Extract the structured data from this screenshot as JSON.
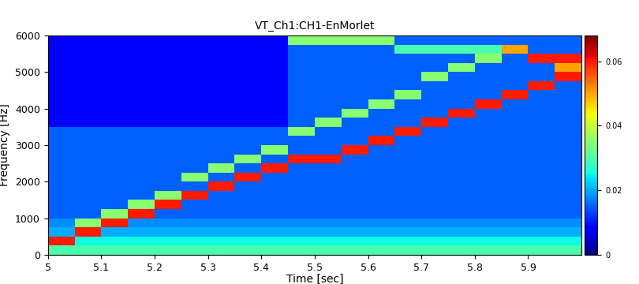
{
  "chart_data": {
    "type": "heatmap",
    "title": "VT_Ch1:CH1-EnMorlet",
    "x_label": "Time [sec]",
    "y_label": "Frequency [Hz]",
    "x_bins": [
      5.0,
      5.05,
      5.1,
      5.15,
      5.2,
      5.25,
      5.3,
      5.35,
      5.4,
      5.45,
      5.5,
      5.55,
      5.6,
      5.65,
      5.7,
      5.75,
      5.8,
      5.85,
      5.9,
      5.95,
      6.0
    ],
    "y_bins": [
      0,
      250,
      500,
      750,
      1000,
      1250,
      1500,
      1750,
      2000,
      2250,
      2500,
      2750,
      3000,
      3250,
      3500,
      3750,
      4000,
      4250,
      4500,
      4750,
      5000,
      5250,
      5500,
      5750,
      6000
    ],
    "cells": [
      [
        0.03,
        0.03,
        0.03,
        0.03,
        0.03,
        0.03,
        0.03,
        0.03,
        0.03,
        0.03,
        0.03,
        0.03,
        0.03,
        0.03,
        0.03,
        0.03,
        0.03,
        0.03,
        0.03,
        0.03
      ],
      [
        0.06,
        0.025,
        0.025,
        0.025,
        0.025,
        0.025,
        0.025,
        0.025,
        0.025,
        0.025,
        0.025,
        0.025,
        0.025,
        0.025,
        0.025,
        0.025,
        0.025,
        0.025,
        0.025,
        0.025
      ],
      [
        0.02,
        0.06,
        0.02,
        0.02,
        0.02,
        0.02,
        0.02,
        0.02,
        0.02,
        0.02,
        0.02,
        0.02,
        0.02,
        0.02,
        0.02,
        0.02,
        0.02,
        0.02,
        0.02,
        0.02
      ],
      [
        0.018,
        0.035,
        0.06,
        0.018,
        0.018,
        0.018,
        0.018,
        0.018,
        0.018,
        0.018,
        0.018,
        0.018,
        0.018,
        0.018,
        0.018,
        0.018,
        0.018,
        0.018,
        0.018,
        0.018
      ],
      [
        0.015,
        0.015,
        0.035,
        0.06,
        0.015,
        0.015,
        0.015,
        0.015,
        0.015,
        0.015,
        0.015,
        0.015,
        0.015,
        0.015,
        0.015,
        0.015,
        0.015,
        0.015,
        0.015,
        0.015
      ],
      [
        0.015,
        0.015,
        0.015,
        0.035,
        0.06,
        0.015,
        0.015,
        0.015,
        0.015,
        0.015,
        0.015,
        0.015,
        0.015,
        0.015,
        0.015,
        0.015,
        0.015,
        0.015,
        0.015,
        0.015
      ],
      [
        0.015,
        0.015,
        0.015,
        0.015,
        0.035,
        0.06,
        0.015,
        0.015,
        0.015,
        0.015,
        0.015,
        0.015,
        0.015,
        0.015,
        0.015,
        0.015,
        0.015,
        0.015,
        0.015,
        0.015
      ],
      [
        0.015,
        0.015,
        0.015,
        0.015,
        0.015,
        0.015,
        0.06,
        0.015,
        0.015,
        0.015,
        0.015,
        0.015,
        0.015,
        0.015,
        0.015,
        0.015,
        0.015,
        0.015,
        0.015,
        0.015
      ],
      [
        0.015,
        0.015,
        0.015,
        0.015,
        0.015,
        0.035,
        0.015,
        0.06,
        0.015,
        0.015,
        0.015,
        0.015,
        0.015,
        0.015,
        0.015,
        0.015,
        0.015,
        0.015,
        0.015,
        0.015
      ],
      [
        0.015,
        0.015,
        0.015,
        0.015,
        0.015,
        0.015,
        0.035,
        0.015,
        0.06,
        0.015,
        0.015,
        0.015,
        0.015,
        0.015,
        0.015,
        0.015,
        0.015,
        0.015,
        0.015,
        0.015
      ],
      [
        0.015,
        0.015,
        0.015,
        0.015,
        0.015,
        0.015,
        0.015,
        0.035,
        0.015,
        0.06,
        0.06,
        0.015,
        0.015,
        0.015,
        0.015,
        0.015,
        0.015,
        0.015,
        0.015,
        0.015
      ],
      [
        0.015,
        0.015,
        0.015,
        0.015,
        0.015,
        0.015,
        0.015,
        0.015,
        0.035,
        0.015,
        0.015,
        0.06,
        0.015,
        0.015,
        0.015,
        0.015,
        0.015,
        0.015,
        0.015,
        0.015
      ],
      [
        0.015,
        0.015,
        0.015,
        0.015,
        0.015,
        0.015,
        0.015,
        0.015,
        0.015,
        0.015,
        0.015,
        0.015,
        0.06,
        0.015,
        0.015,
        0.015,
        0.015,
        0.015,
        0.015,
        0.015
      ],
      [
        0.015,
        0.015,
        0.015,
        0.015,
        0.015,
        0.015,
        0.015,
        0.015,
        0.015,
        0.035,
        0.015,
        0.015,
        0.015,
        0.06,
        0.015,
        0.015,
        0.015,
        0.015,
        0.015,
        0.015
      ],
      [
        0.008,
        0.008,
        0.008,
        0.008,
        0.008,
        0.008,
        0.008,
        0.008,
        0.008,
        0.015,
        0.035,
        0.015,
        0.015,
        0.015,
        0.06,
        0.015,
        0.015,
        0.015,
        0.015,
        0.015
      ],
      [
        0.008,
        0.008,
        0.008,
        0.008,
        0.008,
        0.008,
        0.008,
        0.008,
        0.008,
        0.015,
        0.015,
        0.035,
        0.015,
        0.015,
        0.015,
        0.06,
        0.015,
        0.015,
        0.015,
        0.015
      ],
      [
        0.008,
        0.008,
        0.008,
        0.008,
        0.008,
        0.008,
        0.008,
        0.008,
        0.008,
        0.015,
        0.015,
        0.015,
        0.035,
        0.015,
        0.015,
        0.015,
        0.06,
        0.015,
        0.015,
        0.015
      ],
      [
        0.008,
        0.008,
        0.008,
        0.008,
        0.008,
        0.008,
        0.008,
        0.008,
        0.008,
        0.015,
        0.015,
        0.015,
        0.015,
        0.035,
        0.015,
        0.015,
        0.015,
        0.06,
        0.015,
        0.015
      ],
      [
        0.008,
        0.008,
        0.008,
        0.008,
        0.008,
        0.008,
        0.008,
        0.008,
        0.008,
        0.015,
        0.015,
        0.015,
        0.015,
        0.015,
        0.015,
        0.015,
        0.015,
        0.015,
        0.06,
        0.015
      ],
      [
        0.008,
        0.008,
        0.008,
        0.008,
        0.008,
        0.008,
        0.008,
        0.008,
        0.008,
        0.015,
        0.015,
        0.015,
        0.015,
        0.015,
        0.035,
        0.015,
        0.015,
        0.015,
        0.015,
        0.06
      ],
      [
        0.008,
        0.008,
        0.008,
        0.008,
        0.008,
        0.008,
        0.008,
        0.008,
        0.008,
        0.015,
        0.015,
        0.015,
        0.015,
        0.015,
        0.015,
        0.035,
        0.015,
        0.015,
        0.015,
        0.05
      ],
      [
        0.008,
        0.008,
        0.008,
        0.008,
        0.008,
        0.008,
        0.008,
        0.008,
        0.008,
        0.015,
        0.015,
        0.015,
        0.015,
        0.015,
        0.015,
        0.015,
        0.035,
        0.015,
        0.06,
        0.06
      ],
      [
        0.008,
        0.008,
        0.008,
        0.008,
        0.008,
        0.008,
        0.008,
        0.008,
        0.008,
        0.015,
        0.015,
        0.015,
        0.015,
        0.03,
        0.03,
        0.03,
        0.03,
        0.05,
        0.015,
        0.015
      ],
      [
        0.008,
        0.008,
        0.008,
        0.008,
        0.008,
        0.008,
        0.008,
        0.008,
        0.008,
        0.035,
        0.035,
        0.035,
        0.035,
        0.015,
        0.015,
        0.015,
        0.015,
        0.015,
        0.015,
        0.015
      ]
    ],
    "xlim": [
      5.0,
      6.0
    ],
    "xticks": [
      5,
      5.1,
      5.2,
      5.3,
      5.4,
      5.5,
      5.6,
      5.7,
      5.8,
      5.9
    ],
    "ylim": [
      0,
      6000
    ],
    "yticks": [
      0,
      1000,
      2000,
      3000,
      4000,
      5000,
      6000
    ],
    "colorbar_lim": [
      0,
      0.068
    ],
    "colorbar_ticks": [
      0,
      0.02,
      0.04,
      0.06
    ],
    "color": "jet"
  }
}
